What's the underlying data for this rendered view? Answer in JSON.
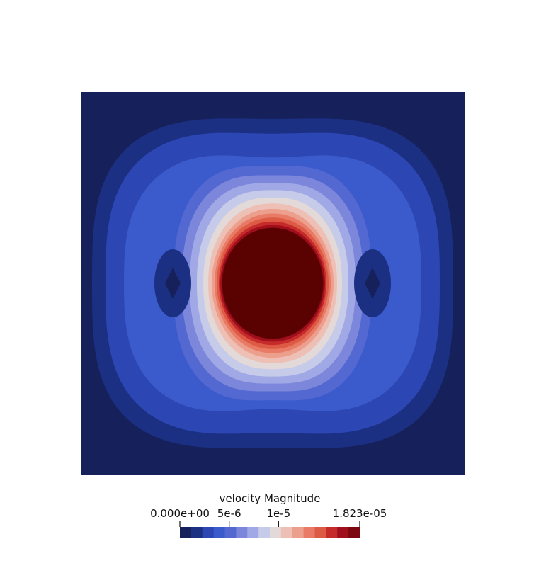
{
  "chart_data": {
    "type": "heatmap",
    "title": "",
    "field": "velocity Magnitude",
    "colormap": "cool-to-warm",
    "range": [
      0,
      1.823e-05
    ],
    "levels": 16,
    "colorbar": {
      "title": "velocity Magnitude",
      "ticks": [
        {
          "value": 0,
          "label": "0.000e+00"
        },
        {
          "value": 5e-06,
          "label": "5e-6"
        },
        {
          "value": 1e-05,
          "label": "1e-5"
        },
        {
          "value": 1.823e-05,
          "label": "1.823e-05"
        }
      ],
      "placement": "bottom-center"
    },
    "band_colors": [
      "#16205a",
      "#1b3083",
      "#2c46b3",
      "#3b5acb",
      "#5468d2",
      "#7c86da",
      "#a0a8e5",
      "#c6cbe9",
      "#e3d9d9",
      "#eec0b5",
      "#ec9f8c",
      "#e87a66",
      "#dd5a45",
      "#c62b2b",
      "#a10f1d",
      "#7c0710",
      "#5a0202"
    ]
  }
}
